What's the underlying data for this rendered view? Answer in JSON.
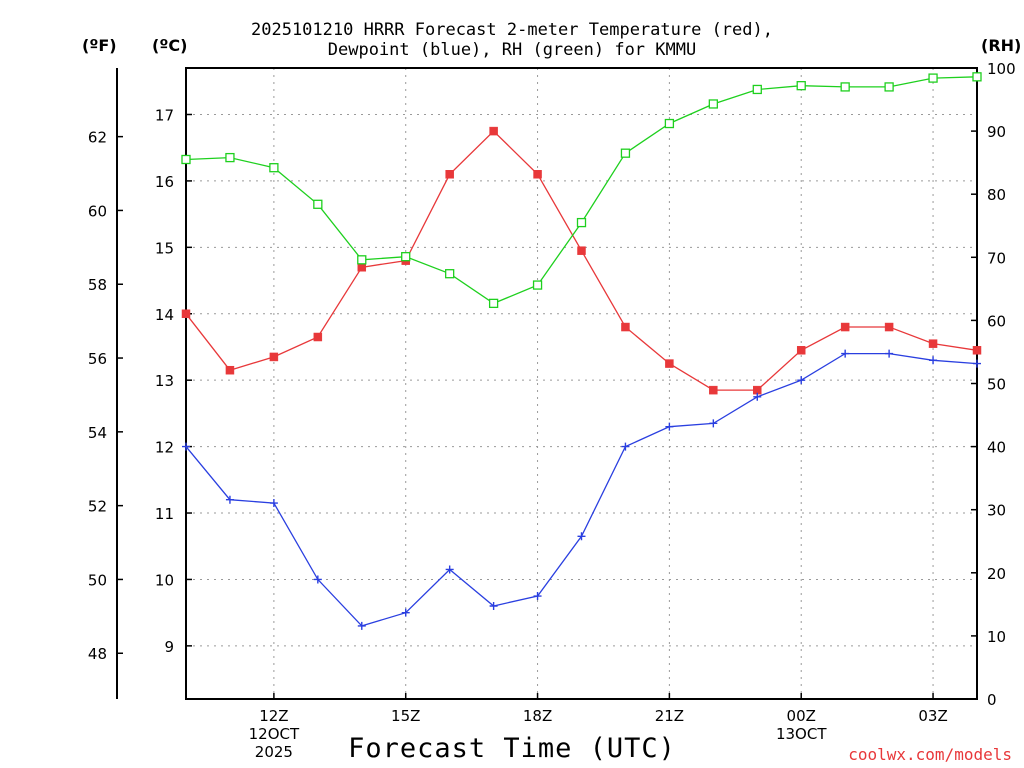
{
  "chart_data": {
    "type": "line",
    "title_line1": "2025101210 HRRR Forecast 2-meter Temperature (red),",
    "title_line2": "Dewpoint (blue), RH (green) for KMMU",
    "xlabel": "Forecast Time (UTC)",
    "units": {
      "fahrenheit": "(ºF)",
      "celsius": "(ºC)",
      "rh": "(RH)"
    },
    "hours": [
      10,
      11,
      12,
      13,
      14,
      15,
      16,
      17,
      18,
      19,
      20,
      21,
      22,
      23,
      24,
      25,
      26,
      27,
      28
    ],
    "xlim": [
      10,
      28
    ],
    "x_ticks": [
      {
        "hour": 12,
        "lines": [
          "12Z",
          "12OCT",
          "2025"
        ]
      },
      {
        "hour": 15,
        "lines": [
          "15Z"
        ]
      },
      {
        "hour": 18,
        "lines": [
          "18Z"
        ]
      },
      {
        "hour": 21,
        "lines": [
          "21Z"
        ]
      },
      {
        "hour": 24,
        "lines": [
          "00Z",
          "13OCT"
        ]
      },
      {
        "hour": 27,
        "lines": [
          "03Z"
        ]
      }
    ],
    "celsius_axis": {
      "ylim": [
        8.2,
        17.7
      ],
      "ticks": [
        9,
        10,
        11,
        12,
        13,
        14,
        15,
        16,
        17
      ]
    },
    "fahrenheit_axis": {
      "ticks": [
        48,
        50,
        52,
        54,
        56,
        58,
        60,
        62
      ]
    },
    "rh_axis": {
      "ylim": [
        0,
        100
      ],
      "ticks": [
        0,
        10,
        20,
        30,
        40,
        50,
        60,
        70,
        80,
        90,
        100
      ]
    },
    "series": [
      {
        "name": "Temperature",
        "axis": "celsius",
        "color": "#e8383a",
        "marker": "filled-square",
        "values": [
          14.0,
          13.15,
          13.35,
          13.65,
          14.7,
          14.8,
          16.1,
          16.75,
          16.1,
          14.95,
          13.8,
          13.25,
          12.85,
          12.85,
          13.45,
          13.8,
          13.8,
          13.55,
          13.45
        ]
      },
      {
        "name": "Dewpoint",
        "axis": "celsius",
        "color": "#2a3fe0",
        "marker": "plus",
        "values": [
          12.0,
          11.2,
          11.15,
          10.0,
          9.3,
          9.5,
          10.15,
          9.6,
          9.75,
          10.65,
          12.0,
          12.3,
          12.35,
          12.75,
          13.0,
          13.4,
          13.4,
          13.3,
          13.25
        ]
      },
      {
        "name": "RH",
        "axis": "rh",
        "color": "#1ed01e",
        "marker": "open-square",
        "values": [
          85.5,
          85.8,
          84.2,
          78.4,
          69.6,
          70.1,
          67.4,
          62.7,
          65.6,
          75.5,
          86.5,
          91.2,
          94.3,
          96.6,
          97.2,
          97.0,
          97.0,
          98.4,
          98.6
        ]
      }
    ]
  },
  "credit": "coolwx.com/models"
}
